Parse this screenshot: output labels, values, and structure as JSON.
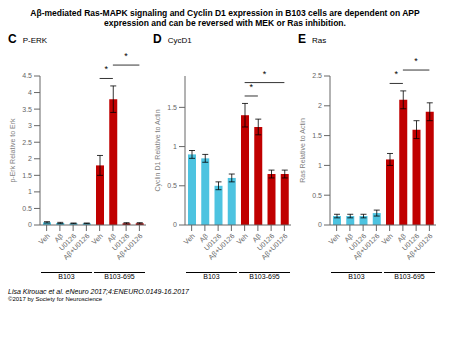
{
  "title": "Aβ-mediated Ras-MAPK signaling and Cyclin D1 expression in B103 cells are dependent on APP\nexpression and can be reversed with MEK or Ras inhibition.",
  "annotations": [
    "Lisa Kirouac et al. eNeuro 2017;4:ENEURO.0149-16.2017",
    "©2017 by Society for Neuroscience"
  ],
  "chart_data": [
    {
      "type": "bar",
      "title": "P-ERK",
      "ylabel": "p-Erk Relative to Erk",
      "categories": [
        "Veh",
        "Aβ",
        "U0126",
        "Aβ+U0126",
        "Veh",
        "Aβ",
        "U0126",
        "Aβ+U0126"
      ],
      "values": [
        0.08,
        0.06,
        0.05,
        0.05,
        1.8,
        3.8,
        0.05,
        0.05
      ],
      "errors": [
        0.02,
        0.02,
        0.01,
        0.01,
        0.3,
        0.4,
        0.02,
        0.02
      ],
      "colors": [
        "#4dc3e0",
        "#4dc3e0",
        "#4dc3e0",
        "#4dc3e0",
        "#c00000",
        "#c00000",
        "#c00000",
        "#c00000"
      ],
      "ylim": [
        0,
        4.5
      ],
      "yticks": [
        0,
        0.5,
        1.0,
        1.5,
        2.0,
        2.5,
        3.0,
        3.5,
        4.0,
        4.5
      ],
      "annotations": [
        {
          "kind": "panel",
          "text": "C"
        },
        {
          "kind": "group",
          "text": "B103",
          "span": [
            0,
            3
          ]
        },
        {
          "kind": "group",
          "text": "B103-695",
          "span": [
            4,
            7
          ]
        },
        {
          "kind": "bracket",
          "text": "*",
          "span": [
            4,
            5
          ]
        },
        {
          "kind": "bracket",
          "text": "*",
          "span": [
            5,
            7
          ]
        }
      ]
    },
    {
      "type": "bar",
      "title": "CycD1",
      "ylabel": "Cyclin D1 Relative to Actin",
      "categories": [
        "Veh",
        "Aβ",
        "U0126",
        "Aβ+U0126",
        "Veh",
        "Aβ",
        "U0126",
        "Aβ+U0126"
      ],
      "values": [
        0.9,
        0.85,
        0.5,
        0.6,
        1.4,
        1.25,
        0.65,
        0.65
      ],
      "errors": [
        0.05,
        0.05,
        0.05,
        0.05,
        0.15,
        0.1,
        0.05,
        0.05
      ],
      "colors": [
        "#4dc3e0",
        "#4dc3e0",
        "#4dc3e0",
        "#4dc3e0",
        "#c00000",
        "#c00000",
        "#c00000",
        "#c00000"
      ],
      "ylim": [
        0,
        1.9
      ],
      "yticks": [
        0,
        0.5,
        1.0,
        1.5
      ],
      "annotations": [
        {
          "kind": "panel",
          "text": "D"
        },
        {
          "kind": "group",
          "text": "B103",
          "span": [
            0,
            3
          ]
        },
        {
          "kind": "group",
          "text": "B103-695",
          "span": [
            4,
            7
          ]
        },
        {
          "kind": "bracket",
          "text": "*",
          "span": [
            4,
            5
          ]
        },
        {
          "kind": "bracket",
          "text": "*",
          "span": [
            4,
            7
          ]
        }
      ]
    },
    {
      "type": "bar",
      "title": "Ras",
      "ylabel": "Ras Relative to Actin",
      "categories": [
        "Veh",
        "Aβ",
        "U0126",
        "Aβ+U0126",
        "Veh",
        "Aβ",
        "U0126",
        "Aβ+U0126"
      ],
      "values": [
        0.15,
        0.15,
        0.15,
        0.2,
        1.1,
        2.1,
        1.6,
        1.9
      ],
      "errors": [
        0.03,
        0.03,
        0.03,
        0.05,
        0.1,
        0.15,
        0.15,
        0.15
      ],
      "colors": [
        "#4dc3e0",
        "#4dc3e0",
        "#4dc3e0",
        "#4dc3e0",
        "#c00000",
        "#c00000",
        "#c00000",
        "#c00000"
      ],
      "ylim": [
        0,
        2.5
      ],
      "yticks": [
        0,
        0.5,
        1.0,
        1.5,
        2.0,
        2.5
      ],
      "annotations": [
        {
          "kind": "panel",
          "text": "E"
        },
        {
          "kind": "group",
          "text": "B103",
          "span": [
            0,
            3
          ]
        },
        {
          "kind": "group",
          "text": "B103-695",
          "span": [
            4,
            7
          ]
        },
        {
          "kind": "bracket",
          "text": "*",
          "span": [
            4,
            5
          ]
        },
        {
          "kind": "bracket",
          "text": "*",
          "span": [
            5,
            7
          ]
        }
      ]
    }
  ]
}
